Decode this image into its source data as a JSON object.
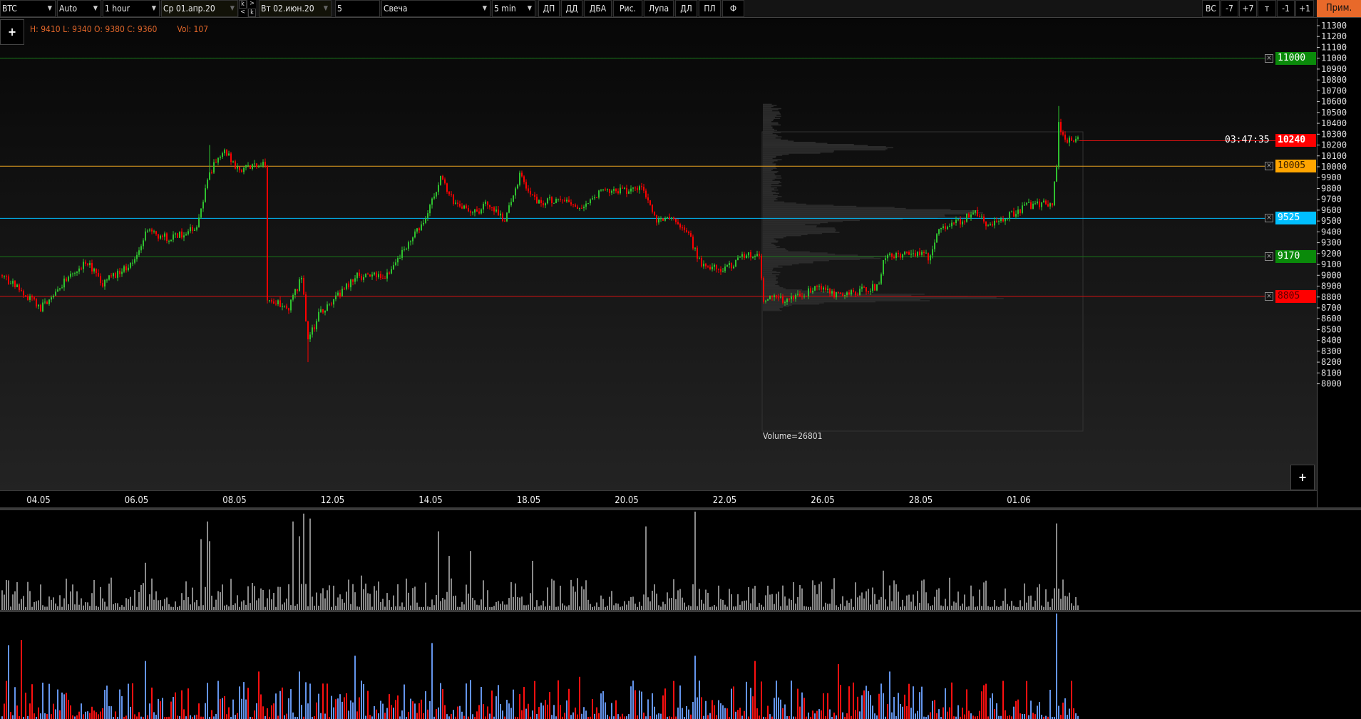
{
  "toolbar": {
    "symbol": "BTC",
    "scale_mode": "Auto",
    "timeframe": "1 hour",
    "date_from": "Ср 01.апр.20",
    "date_to": "Вт 02.июн.20",
    "k_up": "k",
    "k_down": "k",
    "arrow_right": ">",
    "arrow_left": "<",
    "count": "5",
    "chart_type": "Свеча",
    "interval": "5 min",
    "buttons_left": [
      "ДП",
      "ДД",
      "ДБА",
      "Рис.",
      "Лупа",
      "ДЛ",
      "ПЛ",
      "Ф"
    ],
    "buttons_right": [
      "ВС",
      "-7",
      "+7",
      "т",
      "-1",
      "+1"
    ],
    "apply": "Прим."
  },
  "info": {
    "ohlc": "H: 9410 L: 9340 O: 9380 C: 9360",
    "vol": "Vol: 107"
  },
  "plus_label": "+",
  "timer": "03:47:35",
  "volume_profile_label": "Volume=26801",
  "colors": {
    "up": "#2fc12f",
    "down": "#ff0000",
    "volume": "#8a8a8a",
    "delta_buy": "#6495ed",
    "delta_sell": "#ff1010",
    "accent": "#e8692a"
  },
  "levels": [
    {
      "price": 11000,
      "label": "11000",
      "line": "#1a7a1a",
      "bg": "#0a8a0a",
      "fg": "#ffffff"
    },
    {
      "price": 10005,
      "label": "10005",
      "line": "#e5a020",
      "bg": "#ffa500",
      "fg": "#3a2000"
    },
    {
      "price": 9525,
      "label": "9525",
      "line": "#00bfff",
      "bg": "#00bfff",
      "fg": "#ffffff"
    },
    {
      "price": 9170,
      "label": "9170",
      "line": "#1a7a1a",
      "bg": "#0a8a0a",
      "fg": "#ffffff"
    },
    {
      "price": 8805,
      "label": "8805",
      "line": "#d01010",
      "bg": "#ff0000",
      "fg": "#5a0000"
    }
  ],
  "current_price": {
    "price": 10240,
    "label": "10240"
  },
  "chart_data": {
    "type": "candlestick",
    "price_axis": {
      "min": 8000,
      "max": 11300,
      "step": 100,
      "ticks": [
        "11300",
        "11200",
        "11100",
        "11000",
        "10900",
        "10800",
        "10700",
        "10600",
        "10500",
        "10400",
        "10300",
        "10200",
        "10100",
        "10000",
        "9900",
        "9800",
        "9700",
        "9600",
        "9500",
        "9400",
        "9300",
        "9200",
        "9100",
        "9000",
        "8900",
        "8800",
        "8700",
        "8600",
        "8500",
        "8400",
        "8300",
        "8200",
        "8100",
        "8000"
      ]
    },
    "date_ticks": [
      "04.05",
      "06.05",
      "08.05",
      "12.05",
      "14.05",
      "18.05",
      "20.05",
      "22.05",
      "26.05",
      "28.05",
      "01.06"
    ],
    "bar_count": 504,
    "close_path": [
      [
        0,
        9000
      ],
      [
        8,
        8870
      ],
      [
        18,
        8690
      ],
      [
        24,
        8840
      ],
      [
        39,
        9130
      ],
      [
        47,
        8930
      ],
      [
        61,
        9100
      ],
      [
        67,
        9400
      ],
      [
        79,
        9340
      ],
      [
        91,
        9430
      ],
      [
        97,
        9950
      ],
      [
        104,
        10150
      ],
      [
        110,
        9970
      ],
      [
        122,
        10030
      ],
      [
        123,
        10000
      ],
      [
        124,
        8780
      ],
      [
        134,
        8690
      ],
      [
        140,
        8990
      ],
      [
        143,
        8390
      ],
      [
        148,
        8630
      ],
      [
        158,
        8840
      ],
      [
        166,
        8990
      ],
      [
        181,
        9000
      ],
      [
        187,
        9220
      ],
      [
        195,
        9430
      ],
      [
        203,
        9760
      ],
      [
        205,
        9910
      ],
      [
        211,
        9670
      ],
      [
        222,
        9580
      ],
      [
        227,
        9670
      ],
      [
        235,
        9490
      ],
      [
        242,
        9910
      ],
      [
        250,
        9670
      ],
      [
        260,
        9700
      ],
      [
        270,
        9640
      ],
      [
        280,
        9760
      ],
      [
        300,
        9790
      ],
      [
        305,
        9520
      ],
      [
        313,
        9520
      ],
      [
        321,
        9370
      ],
      [
        327,
        9080
      ],
      [
        337,
        9050
      ],
      [
        349,
        9200
      ],
      [
        354,
        9170
      ],
      [
        356,
        8780
      ],
      [
        365,
        8780
      ],
      [
        374,
        8800
      ],
      [
        380,
        8900
      ],
      [
        390,
        8810
      ],
      [
        398,
        8840
      ],
      [
        410,
        8900
      ],
      [
        412,
        9160
      ],
      [
        420,
        9190
      ],
      [
        426,
        9220
      ],
      [
        434,
        9160
      ],
      [
        438,
        9440
      ],
      [
        447,
        9490
      ],
      [
        455,
        9580
      ],
      [
        461,
        9460
      ],
      [
        471,
        9550
      ],
      [
        479,
        9640
      ],
      [
        491,
        9670
      ],
      [
        493,
        10030
      ],
      [
        494,
        10400
      ],
      [
        497,
        10240
      ],
      [
        503,
        10240
      ]
    ],
    "extreme_wicks": [
      [
        143,
        8200
      ],
      [
        494,
        10560
      ],
      [
        97,
        10200
      ]
    ],
    "volume_spikes": [
      [
        67,
        0.48
      ],
      [
        93,
        0.72
      ],
      [
        96,
        0.9
      ],
      [
        97,
        0.7
      ],
      [
        136,
        0.9
      ],
      [
        139,
        0.75
      ],
      [
        141,
        0.98
      ],
      [
        144,
        0.93
      ],
      [
        168,
        0.35
      ],
      [
        204,
        0.8
      ],
      [
        209,
        0.55
      ],
      [
        219,
        0.6
      ],
      [
        248,
        0.5
      ],
      [
        301,
        0.85
      ],
      [
        324,
        1.0
      ],
      [
        412,
        0.4
      ],
      [
        493,
        0.88
      ]
    ],
    "delta_spikes": [
      [
        3,
        "buy",
        0.7
      ],
      [
        9,
        "sell",
        0.75
      ],
      [
        67,
        "buy",
        0.55
      ],
      [
        120,
        "sell",
        0.45
      ],
      [
        139,
        "buy",
        0.45
      ],
      [
        165,
        "buy",
        0.6
      ],
      [
        201,
        "buy",
        0.72
      ],
      [
        249,
        "sell",
        0.36
      ],
      [
        270,
        "sell",
        0.4
      ],
      [
        324,
        "buy",
        0.6
      ],
      [
        352,
        "sell",
        0.55
      ],
      [
        391,
        "sell",
        0.52
      ],
      [
        415,
        "buy",
        0.45
      ],
      [
        493,
        "buy",
        1.0
      ]
    ],
    "volume_profile": {
      "range": [
        8680,
        10580
      ],
      "peaks": [
        [
          10180,
          1.0
        ],
        [
          9600,
          1.45
        ],
        [
          9540,
          1.2
        ],
        [
          9170,
          0.9
        ],
        [
          8800,
          1.75
        ],
        [
          9420,
          0.6
        ]
      ]
    }
  }
}
